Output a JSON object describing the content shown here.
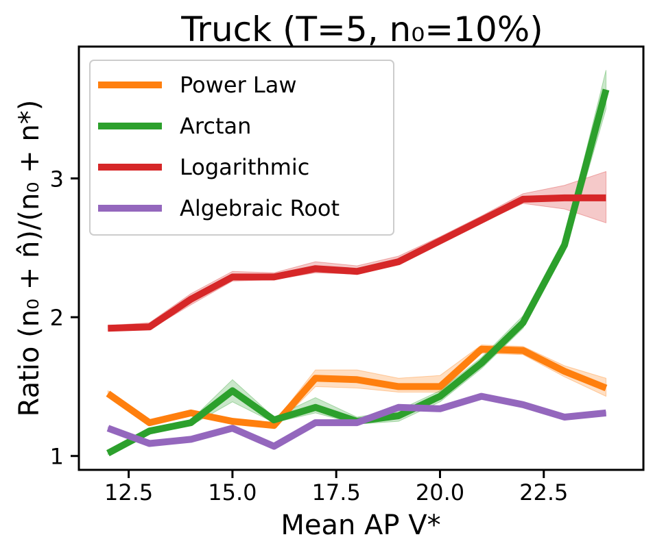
{
  "chart_data": {
    "type": "line",
    "title": "Truck (T=5, n₀=10%)",
    "xlabel": "Mean AP V*",
    "ylabel": "Ratio (n₀ + n̂)/(n₀ + n*)",
    "xlim": [
      11.3,
      24.9
    ],
    "ylim": [
      0.9,
      3.95
    ],
    "xticks": [
      12.5,
      15.0,
      17.5,
      20.0,
      22.5
    ],
    "xtick_labels": [
      "12.5",
      "15.0",
      "17.5",
      "20.0",
      "22.5"
    ],
    "yticks": [
      1,
      2,
      3
    ],
    "ytick_labels": [
      "1",
      "2",
      "3"
    ],
    "grid": false,
    "legend_position": "top-left",
    "x": [
      12,
      13,
      14,
      15,
      16,
      17,
      18,
      19,
      20,
      21,
      22,
      23,
      24
    ],
    "series": [
      {
        "name": "Power Law",
        "color": "#ff7f0e",
        "values": [
          1.45,
          1.24,
          1.31,
          1.25,
          1.22,
          1.56,
          1.55,
          1.5,
          1.5,
          1.77,
          1.76,
          1.61,
          1.49
        ],
        "lower": [
          1.43,
          1.22,
          1.29,
          1.23,
          1.2,
          1.5,
          1.49,
          1.46,
          1.46,
          1.74,
          1.73,
          1.57,
          1.43
        ],
        "upper": [
          1.47,
          1.26,
          1.33,
          1.27,
          1.24,
          1.62,
          1.62,
          1.56,
          1.58,
          1.8,
          1.79,
          1.65,
          1.56
        ]
      },
      {
        "name": "Arctan",
        "color": "#2ca02c",
        "values": [
          1.02,
          1.18,
          1.24,
          1.47,
          1.26,
          1.35,
          1.25,
          1.29,
          1.43,
          1.67,
          1.96,
          2.52,
          3.64
        ],
        "lower": [
          1.01,
          1.16,
          1.22,
          1.39,
          1.24,
          1.31,
          1.23,
          1.25,
          1.39,
          1.63,
          1.92,
          2.47,
          3.5
        ],
        "upper": [
          1.03,
          1.2,
          1.26,
          1.55,
          1.28,
          1.42,
          1.28,
          1.33,
          1.47,
          1.71,
          2.01,
          2.57,
          3.78
        ]
      },
      {
        "name": "Logarithmic",
        "color": "#d62728",
        "values": [
          1.92,
          1.93,
          2.13,
          2.29,
          2.29,
          2.35,
          2.33,
          2.4,
          2.55,
          2.7,
          2.85,
          2.86,
          2.86
        ],
        "lower": [
          1.9,
          1.91,
          2.09,
          2.26,
          2.27,
          2.32,
          2.31,
          2.38,
          2.53,
          2.68,
          2.82,
          2.78,
          2.68
        ],
        "upper": [
          1.94,
          1.96,
          2.17,
          2.33,
          2.32,
          2.4,
          2.37,
          2.44,
          2.58,
          2.73,
          2.89,
          2.95,
          3.05
        ]
      },
      {
        "name": "Algebraic Root",
        "color": "#9467bd",
        "values": [
          1.2,
          1.09,
          1.12,
          1.2,
          1.07,
          1.24,
          1.24,
          1.35,
          1.34,
          1.43,
          1.37,
          1.28,
          1.31
        ],
        "lower": [
          1.19,
          1.08,
          1.11,
          1.19,
          1.06,
          1.23,
          1.23,
          1.34,
          1.33,
          1.42,
          1.36,
          1.27,
          1.3
        ],
        "upper": [
          1.21,
          1.1,
          1.13,
          1.21,
          1.08,
          1.25,
          1.25,
          1.36,
          1.35,
          1.44,
          1.38,
          1.29,
          1.32
        ]
      }
    ]
  }
}
